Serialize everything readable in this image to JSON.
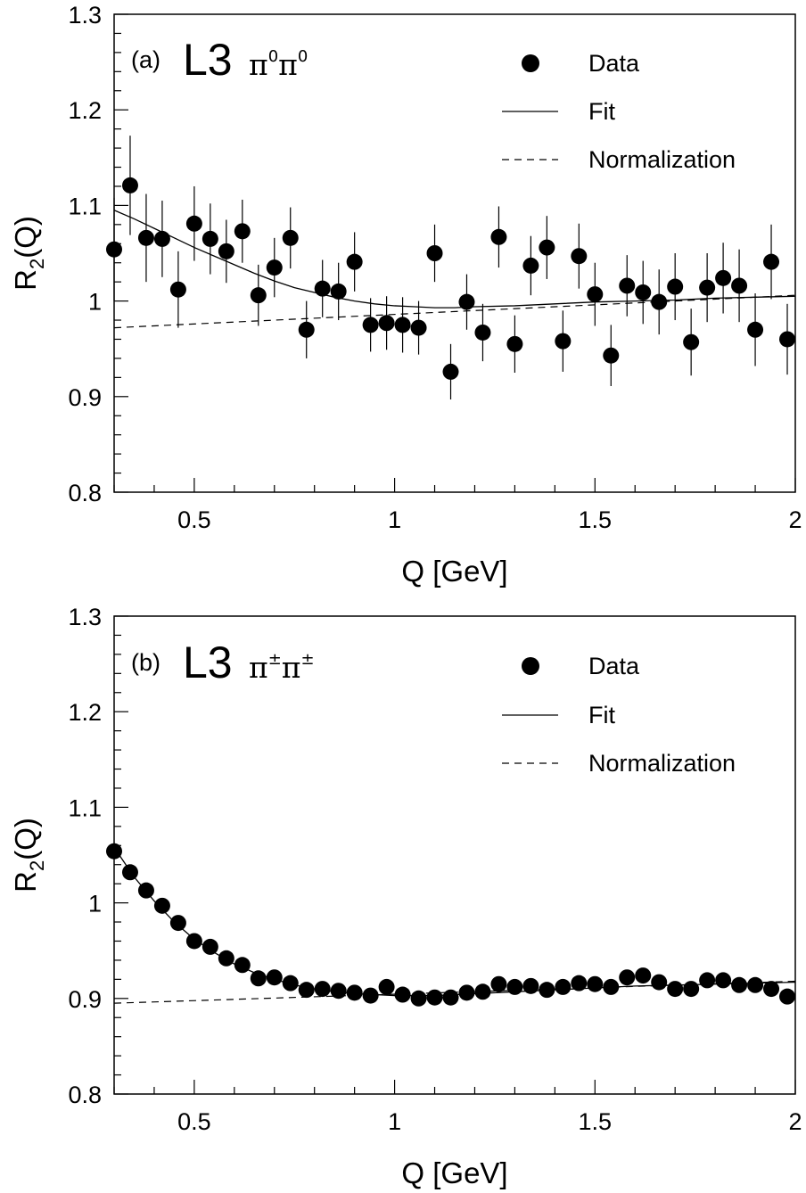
{
  "chart_data": [
    {
      "type": "scatter",
      "panel_label": "(a)",
      "experiment": "L3",
      "particle": "π",
      "charge": "0",
      "xlabel": "Q [GeV]",
      "ylabel_main": "R",
      "ylabel_sub": "2",
      "ylabel_tail": "(Q)",
      "xlim": [
        0.3,
        2.0
      ],
      "ylim": [
        0.8,
        1.3
      ],
      "xticks": [
        {
          "v": 0.5,
          "label": "0.5"
        },
        {
          "v": 1.0,
          "label": "1"
        },
        {
          "v": 1.5,
          "label": "1.5"
        },
        {
          "v": 2.0,
          "label": "2"
        }
      ],
      "yticks": [
        {
          "v": 0.8,
          "label": "0.8"
        },
        {
          "v": 0.9,
          "label": "0.9"
        },
        {
          "v": 1.0,
          "label": "1"
        },
        {
          "v": 1.1,
          "label": "1.1"
        },
        {
          "v": 1.2,
          "label": "1.2"
        },
        {
          "v": 1.3,
          "label": "1.3"
        }
      ],
      "legend": {
        "data": "Data",
        "fit": "Fit",
        "norm": "Normalization"
      },
      "series": [
        {
          "name": "Data",
          "x": [
            0.3,
            0.34,
            0.38,
            0.42,
            0.46,
            0.5,
            0.54,
            0.58,
            0.62,
            0.66,
            0.7,
            0.74,
            0.78,
            0.82,
            0.86,
            0.9,
            0.94,
            0.98,
            1.02,
            1.06,
            1.1,
            1.14,
            1.18,
            1.22,
            1.26,
            1.3,
            1.34,
            1.38,
            1.42,
            1.46,
            1.5,
            1.54,
            1.58,
            1.62,
            1.66,
            1.7,
            1.74,
            1.78,
            1.82,
            1.86,
            1.9,
            1.94,
            1.98
          ],
          "y": [
            1.054,
            1.121,
            1.066,
            1.065,
            1.012,
            1.081,
            1.065,
            1.052,
            1.073,
            1.006,
            1.035,
            1.066,
            0.97,
            1.013,
            1.01,
            1.041,
            0.975,
            0.977,
            0.975,
            0.972,
            1.05,
            0.926,
            0.999,
            0.967,
            1.067,
            0.955,
            1.037,
            1.056,
            0.958,
            1.047,
            1.007,
            0.943,
            1.016,
            1.009,
            0.999,
            1.015,
            0.957,
            1.014,
            1.024,
            1.016,
            0.97,
            1.041,
            0.96
          ],
          "err": [
            0.054,
            0.052,
            0.046,
            0.04,
            0.04,
            0.039,
            0.037,
            0.033,
            0.033,
            0.032,
            0.031,
            0.032,
            0.03,
            0.03,
            0.03,
            0.031,
            0.028,
            0.028,
            0.029,
            0.028,
            0.03,
            0.029,
            0.029,
            0.03,
            0.032,
            0.03,
            0.031,
            0.033,
            0.032,
            0.034,
            0.033,
            0.032,
            0.032,
            0.033,
            0.034,
            0.035,
            0.035,
            0.036,
            0.037,
            0.038,
            0.038,
            0.039,
            0.037
          ]
        },
        {
          "name": "Fit",
          "x": [
            0.3,
            0.35,
            0.4,
            0.45,
            0.5,
            0.55,
            0.6,
            0.65,
            0.7,
            0.75,
            0.8,
            0.85,
            0.9,
            0.95,
            1.0,
            1.05,
            1.1,
            1.15,
            1.2,
            1.3,
            1.4,
            1.5,
            1.6,
            1.7,
            1.8,
            1.9,
            2.0
          ],
          "y": [
            1.095,
            1.086,
            1.076,
            1.066,
            1.056,
            1.047,
            1.038,
            1.029,
            1.021,
            1.014,
            1.009,
            1.004,
            1.0,
            0.997,
            0.995,
            0.994,
            0.993,
            0.993,
            0.994,
            0.995,
            0.997,
            0.999,
            1.0,
            1.001,
            1.003,
            1.004,
            1.005
          ]
        },
        {
          "name": "Normalization",
          "x": [
            0.3,
            2.0
          ],
          "y": [
            0.972,
            1.006
          ]
        }
      ]
    },
    {
      "type": "scatter",
      "panel_label": "(b)",
      "experiment": "L3",
      "particle": "π",
      "charge": "±",
      "xlabel": "Q [GeV]",
      "ylabel_main": "R",
      "ylabel_sub": "2",
      "ylabel_tail": "(Q)",
      "xlim": [
        0.3,
        2.0
      ],
      "ylim": [
        0.8,
        1.3
      ],
      "xticks": [
        {
          "v": 0.5,
          "label": "0.5"
        },
        {
          "v": 1.0,
          "label": "1"
        },
        {
          "v": 1.5,
          "label": "1.5"
        },
        {
          "v": 2.0,
          "label": "2"
        }
      ],
      "yticks": [
        {
          "v": 0.8,
          "label": "0.8"
        },
        {
          "v": 0.9,
          "label": "0.9"
        },
        {
          "v": 1.0,
          "label": "1"
        },
        {
          "v": 1.1,
          "label": "1.1"
        },
        {
          "v": 1.2,
          "label": "1.2"
        },
        {
          "v": 1.3,
          "label": "1.3"
        }
      ],
      "legend": {
        "data": "Data",
        "fit": "Fit",
        "norm": "Normalization"
      },
      "series": [
        {
          "name": "Data",
          "x": [
            0.3,
            0.34,
            0.38,
            0.42,
            0.46,
            0.5,
            0.54,
            0.58,
            0.62,
            0.66,
            0.7,
            0.74,
            0.78,
            0.82,
            0.86,
            0.9,
            0.94,
            0.98,
            1.02,
            1.06,
            1.1,
            1.14,
            1.18,
            1.22,
            1.26,
            1.3,
            1.34,
            1.38,
            1.42,
            1.46,
            1.5,
            1.54,
            1.58,
            1.62,
            1.66,
            1.7,
            1.74,
            1.78,
            1.82,
            1.86,
            1.9,
            1.94,
            1.98
          ],
          "y": [
            1.054,
            1.032,
            1.013,
            0.997,
            0.979,
            0.96,
            0.954,
            0.942,
            0.935,
            0.921,
            0.922,
            0.916,
            0.909,
            0.91,
            0.908,
            0.906,
            0.903,
            0.912,
            0.904,
            0.9,
            0.901,
            0.901,
            0.906,
            0.907,
            0.915,
            0.912,
            0.913,
            0.909,
            0.912,
            0.916,
            0.915,
            0.912,
            0.922,
            0.924,
            0.917,
            0.91,
            0.91,
            0.919,
            0.919,
            0.914,
            0.914,
            0.91,
            0.902
          ]
        },
        {
          "name": "Fit",
          "x": [
            0.3,
            0.35,
            0.4,
            0.45,
            0.5,
            0.55,
            0.6,
            0.65,
            0.7,
            0.75,
            0.8,
            0.85,
            0.9,
            0.95,
            1.0,
            1.05,
            1.1,
            1.15,
            1.2,
            1.3,
            1.4,
            1.5,
            1.6,
            1.7,
            1.8,
            1.9,
            2.0
          ],
          "y": [
            1.058,
            1.027,
            1.002,
            0.98,
            0.962,
            0.948,
            0.936,
            0.927,
            0.92,
            0.914,
            0.91,
            0.907,
            0.905,
            0.904,
            0.903,
            0.903,
            0.903,
            0.904,
            0.905,
            0.907,
            0.909,
            0.911,
            0.913,
            0.914,
            0.915,
            0.916,
            0.917
          ]
        },
        {
          "name": "Normalization",
          "x": [
            0.3,
            2.0
          ],
          "y": [
            0.895,
            0.918
          ]
        }
      ]
    }
  ]
}
